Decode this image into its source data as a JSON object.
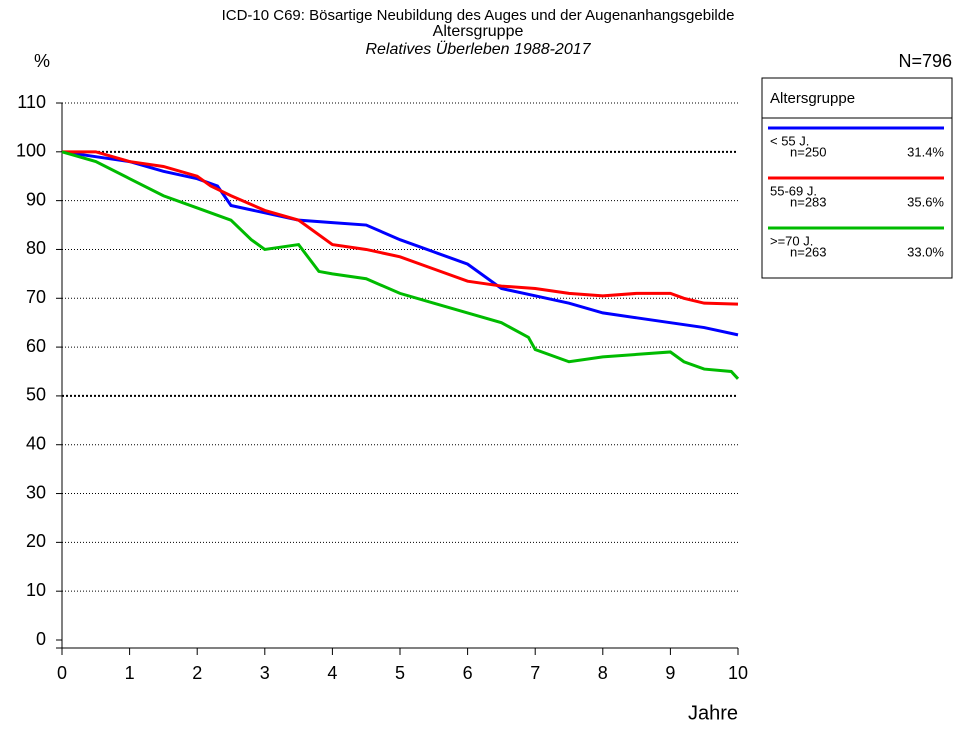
{
  "chart_data": {
    "type": "line",
    "title": "ICD-10 C69: Bösartige Neubildung des Auges und der Augenanhangsgebilde",
    "subtitle": "Altersgruppe",
    "caption": "Relatives Überleben 1988-2017",
    "y_label": "%",
    "x_label": "Jahre",
    "total": "N=796",
    "legend_title": "Altersgruppe",
    "xlim": [
      0,
      10
    ],
    "xticks": [
      0,
      1,
      2,
      3,
      4,
      5,
      6,
      7,
      8,
      9,
      10
    ],
    "ylim": [
      0,
      110
    ],
    "yticks": [
      0,
      10,
      20,
      30,
      40,
      50,
      60,
      70,
      80,
      90,
      100,
      110
    ],
    "grid": true,
    "grid_emphasis": [
      50,
      100
    ],
    "legend": "right",
    "series": [
      {
        "name": "< 55 J.",
        "n": "n=250",
        "share": "31.4%",
        "color": "#0000ff",
        "x": [
          0,
          0.5,
          1,
          1.5,
          2,
          2.3,
          2.5,
          3,
          3.5,
          4,
          4.5,
          5,
          5.5,
          6,
          6.5,
          7,
          7.5,
          8,
          8.5,
          9,
          9.5,
          10
        ],
        "values": [
          100,
          99,
          98,
          96,
          94.5,
          93,
          89,
          87.5,
          86,
          85.5,
          85,
          82,
          79.5,
          77,
          72,
          70.5,
          69,
          67,
          66,
          65,
          64,
          62.5
        ]
      },
      {
        "name": "55-69 J.",
        "n": "n=283",
        "share": "35.6%",
        "color": "#ff0000",
        "x": [
          0,
          0.5,
          1,
          1.5,
          2,
          2.2,
          2.5,
          3,
          3.5,
          4,
          4.5,
          5,
          5.5,
          6,
          6.5,
          7,
          7.5,
          8,
          8.5,
          9,
          9.2,
          9.5,
          10
        ],
        "values": [
          100,
          100,
          98,
          97,
          95,
          93,
          91,
          88,
          86,
          81,
          80,
          78.5,
          76,
          73.5,
          72.5,
          72,
          71,
          70.5,
          71,
          71,
          70,
          69,
          68.8
        ]
      },
      {
        "name": ">=70 J.",
        "n": "n=263",
        "share": "33.0%",
        "color": "#00bb00",
        "x": [
          0,
          0.5,
          1,
          1.5,
          2,
          2.5,
          2.8,
          3,
          3.5,
          3.8,
          4,
          4.5,
          5,
          5.5,
          6,
          6.5,
          6.9,
          7,
          7.5,
          8,
          8.5,
          9,
          9.2,
          9.5,
          9.9,
          10
        ],
        "values": [
          100,
          98,
          94.5,
          91,
          88.5,
          86,
          82,
          80,
          81,
          75.5,
          75,
          74,
          71,
          69,
          67,
          65,
          62,
          59.5,
          57,
          58,
          58.5,
          59,
          57,
          55.5,
          55,
          53.5
        ]
      }
    ]
  }
}
